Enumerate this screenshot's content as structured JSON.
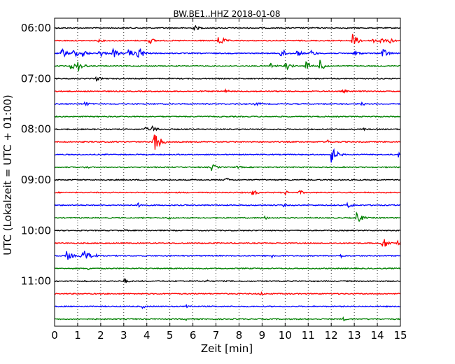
{
  "chart_data": {
    "type": "line",
    "title": "BW.BE1..HHZ 2018-01-08",
    "xlabel": "Zeit  [min]",
    "ylabel": "UTC (Lokalzeit = UTC + 01:00)",
    "xlim": [
      0,
      15
    ],
    "x_ticks": [
      "0",
      "1",
      "2",
      "3",
      "4",
      "5",
      "6",
      "7",
      "8",
      "9",
      "10",
      "11",
      "12",
      "13",
      "14",
      "15"
    ],
    "y_tick_labels": [
      "06:00",
      "07:00",
      "08:00",
      "09:00",
      "10:00",
      "11:00"
    ],
    "grid": "vertical dotted",
    "trace_colors": [
      "#000000",
      "#ff0000",
      "#0000ff",
      "#008000"
    ],
    "series": [
      {
        "start": "06:00",
        "events": [
          {
            "x": 6.05,
            "amp": 0.5
          }
        ]
      },
      {
        "start": "06:15",
        "events": [
          {
            "x": 1.9,
            "amp": 0.3
          },
          {
            "x": 4.1,
            "amp": 0.6
          },
          {
            "x": 7.1,
            "amp": 1.0
          },
          {
            "x": 12.9,
            "amp": 1.3
          },
          {
            "x": 13.8,
            "amp": 0.6
          },
          {
            "x": 14.1,
            "amp": 0.6
          },
          {
            "x": 14.5,
            "amp": 0.6
          }
        ]
      },
      {
        "start": "06:30",
        "events": [
          {
            "x": 0.3,
            "amp": 0.9
          },
          {
            "x": 0.8,
            "amp": 0.8
          },
          {
            "x": 1.2,
            "amp": 0.7
          },
          {
            "x": 1.9,
            "amp": 0.8
          },
          {
            "x": 2.5,
            "amp": 1.0
          },
          {
            "x": 3.2,
            "amp": 0.8
          },
          {
            "x": 3.6,
            "amp": 1.4
          },
          {
            "x": 9.8,
            "amp": 0.9
          },
          {
            "x": 10.5,
            "amp": 0.6
          },
          {
            "x": 11.1,
            "amp": 0.6
          },
          {
            "x": 13.0,
            "amp": 0.6
          },
          {
            "x": 14.2,
            "amp": 1.0
          }
        ]
      },
      {
        "start": "06:45",
        "events": [
          {
            "x": 0.7,
            "amp": 0.7
          },
          {
            "x": 1.0,
            "amp": 1.0
          },
          {
            "x": 9.3,
            "amp": 0.7
          },
          {
            "x": 10.0,
            "amp": 0.8
          },
          {
            "x": 10.9,
            "amp": 0.8
          },
          {
            "x": 11.5,
            "amp": 1.0
          }
        ]
      },
      {
        "start": "07:00",
        "events": [
          {
            "x": 1.8,
            "amp": 0.4
          }
        ]
      },
      {
        "start": "07:15",
        "events": [
          {
            "x": 7.4,
            "amp": 0.3
          },
          {
            "x": 12.5,
            "amp": 0.3
          }
        ]
      },
      {
        "start": "07:30",
        "events": [
          {
            "x": 1.3,
            "amp": 0.4
          },
          {
            "x": 8.7,
            "amp": 0.4
          },
          {
            "x": 13.3,
            "amp": 0.3
          }
        ]
      },
      {
        "start": "07:45",
        "events": []
      },
      {
        "start": "08:00",
        "events": [
          {
            "x": 3.9,
            "amp": 0.4
          },
          {
            "x": 4.2,
            "amp": 0.6
          },
          {
            "x": 13.4,
            "amp": 0.2
          }
        ]
      },
      {
        "start": "08:15",
        "events": [
          {
            "x": 4.3,
            "amp": 2.2
          },
          {
            "x": 4.6,
            "amp": 0.6
          },
          {
            "x": 11.8,
            "amp": 0.4
          }
        ]
      },
      {
        "start": "08:30",
        "events": [
          {
            "x": 12.0,
            "amp": 1.4
          },
          {
            "x": 14.9,
            "amp": 0.5
          }
        ]
      },
      {
        "start": "08:45",
        "events": [
          {
            "x": 1.3,
            "amp": 0.3
          },
          {
            "x": 6.8,
            "amp": 0.6
          },
          {
            "x": 7.9,
            "amp": 0.3
          }
        ]
      },
      {
        "start": "09:00",
        "events": [
          {
            "x": 7.4,
            "amp": 0.4
          }
        ]
      },
      {
        "start": "09:15",
        "events": [
          {
            "x": 8.5,
            "amp": 0.7
          },
          {
            "x": 10.0,
            "amp": 0.4
          },
          {
            "x": 10.6,
            "amp": 0.4
          }
        ]
      },
      {
        "start": "09:30",
        "events": [
          {
            "x": 3.6,
            "amp": 0.4
          },
          {
            "x": 9.9,
            "amp": 0.3
          },
          {
            "x": 12.7,
            "amp": 0.5
          }
        ]
      },
      {
        "start": "09:45",
        "events": [
          {
            "x": 4.9,
            "amp": 0.3
          },
          {
            "x": 9.1,
            "amp": 0.3
          },
          {
            "x": 13.1,
            "amp": 1.0
          }
        ]
      },
      {
        "start": "10:00",
        "events": [
          {
            "x": 3.0,
            "amp": 0.2
          }
        ]
      },
      {
        "start": "10:15",
        "events": [
          {
            "x": 14.2,
            "amp": 1.2
          },
          {
            "x": 14.8,
            "amp": 0.6
          }
        ]
      },
      {
        "start": "10:30",
        "events": [
          {
            "x": 0.5,
            "amp": 0.9
          },
          {
            "x": 1.1,
            "amp": 0.7
          },
          {
            "x": 1.3,
            "amp": 1.0
          },
          {
            "x": 1.6,
            "amp": 0.6
          },
          {
            "x": 9.4,
            "amp": 0.4
          },
          {
            "x": 12.4,
            "amp": 0.3
          }
        ]
      },
      {
        "start": "10:45",
        "events": [
          {
            "x": 1.4,
            "amp": 0.3
          }
        ]
      },
      {
        "start": "11:00",
        "events": [
          {
            "x": 3.0,
            "amp": 0.4
          },
          {
            "x": 6.5,
            "amp": 0.3
          }
        ]
      },
      {
        "start": "11:15",
        "events": [
          {
            "x": 7.2,
            "amp": 0.2
          },
          {
            "x": 8.9,
            "amp": 0.3
          }
        ]
      },
      {
        "start": "11:30",
        "events": [
          {
            "x": 3.8,
            "amp": 0.3
          },
          {
            "x": 5.7,
            "amp": 0.4
          }
        ]
      },
      {
        "start": "11:45",
        "events": [
          {
            "x": 5.7,
            "amp": 0.3
          },
          {
            "x": 12.5,
            "amp": 0.3
          }
        ]
      }
    ]
  }
}
